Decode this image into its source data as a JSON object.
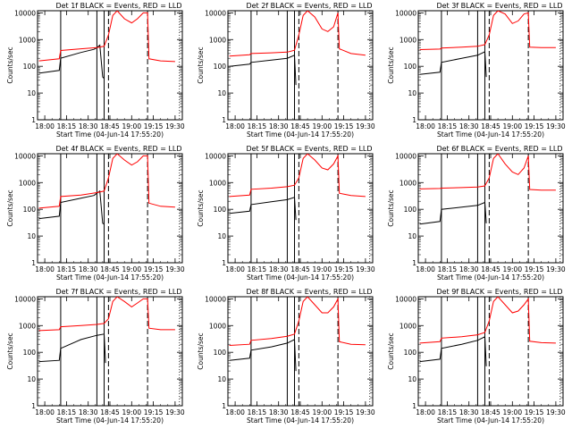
{
  "chart_data": [
    {
      "type": "line",
      "title": "Det 1f BLACK = Events, RED = LLD",
      "xlabel": "Start Time (04-Jun-14 17:55:20)",
      "ylabel": "Counts/sec",
      "xticks": [
        "18:00",
        "18:15",
        "18:30",
        "18:45",
        "19:00",
        "19:15",
        "19:30"
      ],
      "yticks": [
        "1",
        "10",
        "100",
        "1000",
        "10000"
      ],
      "yscale": "log",
      "ylim": [
        1,
        12000
      ],
      "xlim": [
        "17:55",
        "19:35"
      ],
      "series": [
        {
          "name": "Events",
          "color": "#000000",
          "x": [
            "17:56",
            "18:10",
            "18:11",
            "18:25",
            "18:34",
            "18:36",
            "18:38",
            "18:40",
            "18:41"
          ],
          "values": [
            55,
            70,
            200,
            330,
            430,
            500,
            620,
            40,
            35
          ]
        },
        {
          "name": "LLD",
          "color": "#ff0000",
          "x": [
            "17:56",
            "18:10",
            "18:11",
            "18:25",
            "18:36",
            "18:41",
            "18:44",
            "18:47",
            "18:50",
            "18:55",
            "19:00",
            "19:04",
            "19:08",
            "19:11",
            "19:12",
            "19:20",
            "19:30"
          ],
          "values": [
            160,
            190,
            390,
            450,
            500,
            560,
            1500,
            8000,
            12000,
            6000,
            4200,
            6000,
            10000,
            10000,
            190,
            160,
            150
          ]
        }
      ],
      "markers": {
        "solid": [
          "18:11",
          "18:36",
          "18:41"
        ],
        "dashed": [
          "18:44",
          "19:11"
        ],
        "dotted": [
          "19:33"
        ]
      }
    },
    {
      "type": "line",
      "title": "Det 2f BLACK = Events, RED = LLD",
      "xlabel": "Start Time (04-Jun-14 17:55:20)",
      "ylabel": "Counts/sec",
      "xticks": [
        "18:00",
        "18:15",
        "18:30",
        "18:45",
        "19:00",
        "19:15",
        "19:30"
      ],
      "yticks": [
        "1",
        "10",
        "100",
        "1000",
        "10000"
      ],
      "yscale": "log",
      "ylim": [
        1,
        12000
      ],
      "xlim": [
        "17:55",
        "19:35"
      ],
      "series": [
        {
          "name": "Events",
          "color": "#000000",
          "x": [
            "17:56",
            "18:10",
            "18:11",
            "18:25",
            "18:36",
            "18:41",
            "18:42"
          ],
          "values": [
            100,
            120,
            140,
            170,
            200,
            260,
            20
          ]
        },
        {
          "name": "LLD",
          "color": "#ff0000",
          "x": [
            "17:56",
            "18:10",
            "18:11",
            "18:25",
            "18:36",
            "18:41",
            "18:44",
            "18:47",
            "18:50",
            "18:55",
            "19:00",
            "19:04",
            "19:08",
            "19:11",
            "19:12",
            "19:20",
            "19:30"
          ],
          "values": [
            240,
            270,
            300,
            320,
            340,
            400,
            1500,
            8000,
            12000,
            7000,
            2500,
            2000,
            3000,
            10000,
            450,
            300,
            260
          ]
        }
      ],
      "markers": {
        "solid": [
          "18:11",
          "18:36",
          "18:41"
        ],
        "dashed": [
          "18:44",
          "19:11"
        ],
        "dotted": [
          "19:33"
        ]
      }
    },
    {
      "type": "line",
      "title": "Det 3f BLACK = Events, RED = LLD",
      "xlabel": "Start Time (04-Jun-14 17:55:20)",
      "ylabel": "Counts/sec",
      "xticks": [
        "18:00",
        "18:15",
        "18:30",
        "18:45",
        "19:00",
        "19:15",
        "19:30"
      ],
      "yticks": [
        "1",
        "10",
        "100",
        "1000",
        "10000"
      ],
      "yscale": "log",
      "ylim": [
        1,
        12000
      ],
      "xlim": [
        "17:55",
        "19:35"
      ],
      "series": [
        {
          "name": "Events",
          "color": "#000000",
          "x": [
            "17:56",
            "18:10",
            "18:11",
            "18:25",
            "18:36",
            "18:41",
            "18:42"
          ],
          "values": [
            50,
            60,
            140,
            200,
            260,
            350,
            40
          ]
        },
        {
          "name": "LLD",
          "color": "#ff0000",
          "x": [
            "17:56",
            "18:10",
            "18:11",
            "18:25",
            "18:36",
            "18:41",
            "18:44",
            "18:47",
            "18:50",
            "18:55",
            "19:00",
            "19:04",
            "19:08",
            "19:11",
            "19:12",
            "19:20",
            "19:30"
          ],
          "values": [
            420,
            440,
            480,
            520,
            560,
            650,
            1500,
            8000,
            12000,
            9000,
            4000,
            5000,
            9000,
            10000,
            520,
            500,
            500
          ]
        }
      ],
      "markers": {
        "solid": [
          "18:11",
          "18:36",
          "18:41"
        ],
        "dashed": [
          "18:44",
          "19:11"
        ],
        "dotted": [
          "19:33"
        ]
      }
    },
    {
      "type": "line",
      "title": "Det 4f BLACK = Events, RED = LLD",
      "xlabel": "Start Time (04-Jun-14 17:55:20)",
      "ylabel": "Counts/sec",
      "xticks": [
        "18:00",
        "18:15",
        "18:30",
        "18:45",
        "19:00",
        "19:15",
        "19:30"
      ],
      "yticks": [
        "1",
        "10",
        "100",
        "1000",
        "10000"
      ],
      "yscale": "log",
      "ylim": [
        1,
        12000
      ],
      "xlim": [
        "17:55",
        "19:35"
      ],
      "series": [
        {
          "name": "Events",
          "color": "#000000",
          "x": [
            "17:56",
            "18:10",
            "18:11",
            "18:25",
            "18:34",
            "18:36",
            "18:38",
            "18:40",
            "18:41"
          ],
          "values": [
            45,
            55,
            180,
            260,
            330,
            400,
            480,
            30,
            28
          ]
        },
        {
          "name": "LLD",
          "color": "#ff0000",
          "x": [
            "17:56",
            "18:10",
            "18:11",
            "18:25",
            "18:36",
            "18:41",
            "18:44",
            "18:47",
            "18:50",
            "18:55",
            "19:00",
            "19:04",
            "19:08",
            "19:11",
            "19:12",
            "19:20",
            "19:30"
          ],
          "values": [
            110,
            130,
            300,
            340,
            420,
            480,
            1500,
            8000,
            12000,
            7000,
            4500,
            6000,
            10000,
            10000,
            170,
            130,
            120
          ]
        }
      ],
      "markers": {
        "solid": [
          "18:11",
          "18:36",
          "18:41"
        ],
        "dashed": [
          "18:44",
          "19:11"
        ],
        "dotted": [
          "19:33"
        ]
      }
    },
    {
      "type": "line",
      "title": "Det 5f BLACK = Events, RED = LLD",
      "xlabel": "Start Time (04-Jun-14 17:55:20)",
      "ylabel": "Counts/sec",
      "xticks": [
        "18:00",
        "18:15",
        "18:30",
        "18:45",
        "19:00",
        "19:15",
        "19:30"
      ],
      "yticks": [
        "1",
        "10",
        "100",
        "1000",
        "10000"
      ],
      "yscale": "log",
      "ylim": [
        1,
        12000
      ],
      "xlim": [
        "17:55",
        "19:35"
      ],
      "series": [
        {
          "name": "Events",
          "color": "#000000",
          "x": [
            "17:56",
            "18:10",
            "18:11",
            "18:25",
            "18:36",
            "18:41",
            "18:42"
          ],
          "values": [
            70,
            85,
            150,
            190,
            230,
            280,
            40
          ]
        },
        {
          "name": "LLD",
          "color": "#ff0000",
          "x": [
            "17:56",
            "18:10",
            "18:11",
            "18:25",
            "18:36",
            "18:41",
            "18:44",
            "18:47",
            "18:50",
            "18:55",
            "19:00",
            "19:04",
            "19:08",
            "19:11",
            "19:12",
            "19:20",
            "19:30"
          ],
          "values": [
            300,
            340,
            560,
            620,
            700,
            800,
            1500,
            8000,
            12000,
            7000,
            3500,
            3000,
            5000,
            10000,
            400,
            330,
            300
          ]
        }
      ],
      "markers": {
        "solid": [
          "18:11",
          "18:36",
          "18:41"
        ],
        "dashed": [
          "18:44",
          "19:11"
        ],
        "dotted": [
          "19:33"
        ]
      }
    },
    {
      "type": "line",
      "title": "Det 6f BLACK = Events, RED = LLD",
      "xlabel": "Start Time (04-Jun-14 17:55:20)",
      "ylabel": "Counts/sec",
      "xticks": [
        "18:00",
        "18:15",
        "18:30",
        "18:45",
        "19:00",
        "19:15",
        "19:30"
      ],
      "yticks": [
        "1",
        "10",
        "100",
        "1000",
        "10000"
      ],
      "yscale": "log",
      "ylim": [
        1,
        12000
      ],
      "xlim": [
        "17:55",
        "19:35"
      ],
      "series": [
        {
          "name": "Events",
          "color": "#000000",
          "x": [
            "17:56",
            "18:10",
            "18:11",
            "18:25",
            "18:36",
            "18:41",
            "18:42"
          ],
          "values": [
            28,
            35,
            100,
            120,
            140,
            180,
            30
          ]
        },
        {
          "name": "LLD",
          "color": "#ff0000",
          "x": [
            "17:56",
            "18:10",
            "18:11",
            "18:25",
            "18:36",
            "18:41",
            "18:44",
            "18:47",
            "18:50",
            "18:55",
            "19:00",
            "19:04",
            "19:08",
            "19:11",
            "19:12",
            "19:20",
            "19:30"
          ],
          "values": [
            580,
            600,
            620,
            650,
            680,
            750,
            1500,
            8000,
            12000,
            5000,
            2500,
            2000,
            3500,
            10000,
            550,
            520,
            520
          ]
        }
      ],
      "markers": {
        "solid": [
          "18:11",
          "18:36",
          "18:41"
        ],
        "dashed": [
          "18:44",
          "19:11"
        ],
        "dotted": [
          "19:33"
        ]
      }
    },
    {
      "type": "line",
      "title": "Det 7f BLACK = Events, RED = LLD",
      "xlabel": "Start Time (04-Jun-14 17:55:20)",
      "ylabel": "Counts/sec",
      "xticks": [
        "18:00",
        "18:15",
        "18:30",
        "18:45",
        "19:00",
        "19:15",
        "19:30"
      ],
      "yticks": [
        "1",
        "10",
        "100",
        "1000",
        "10000"
      ],
      "yscale": "log",
      "ylim": [
        1,
        12000
      ],
      "xlim": [
        "17:55",
        "19:35"
      ],
      "series": [
        {
          "name": "Events",
          "color": "#000000",
          "x": [
            "17:56",
            "18:10",
            "18:11",
            "18:25",
            "18:36",
            "18:41",
            "18:42"
          ],
          "values": [
            45,
            50,
            140,
            300,
            430,
            480,
            40
          ]
        },
        {
          "name": "LLD",
          "color": "#ff0000",
          "x": [
            "17:56",
            "18:10",
            "18:11",
            "18:25",
            "18:36",
            "18:41",
            "18:44",
            "18:47",
            "18:50",
            "18:55",
            "19:00",
            "19:04",
            "19:08",
            "19:11",
            "19:12",
            "19:20",
            "19:30"
          ],
          "values": [
            650,
            700,
            900,
            1000,
            1100,
            1200,
            1800,
            8000,
            12000,
            8000,
            5000,
            7000,
            10000,
            10000,
            800,
            700,
            700
          ]
        }
      ],
      "markers": {
        "solid": [
          "18:11",
          "18:36",
          "18:41"
        ],
        "dashed": [
          "18:44",
          "19:11"
        ],
        "dotted": [
          "19:33"
        ]
      }
    },
    {
      "type": "line",
      "title": "Det 8f BLACK = Events, RED = LLD",
      "xlabel": "Start Time (04-Jun-14 17:55:20)",
      "ylabel": "Counts/sec",
      "xticks": [
        "18:00",
        "18:15",
        "18:30",
        "18:45",
        "19:00",
        "19:15",
        "19:30"
      ],
      "yticks": [
        "1",
        "10",
        "100",
        "1000",
        "10000"
      ],
      "yscale": "log",
      "ylim": [
        1,
        12000
      ],
      "xlim": [
        "17:55",
        "19:35"
      ],
      "series": [
        {
          "name": "Events",
          "color": "#000000",
          "x": [
            "17:56",
            "18:10",
            "18:11",
            "18:25",
            "18:36",
            "18:41",
            "18:42"
          ],
          "values": [
            50,
            60,
            120,
            160,
            220,
            300,
            20
          ]
        },
        {
          "name": "LLD",
          "color": "#ff0000",
          "x": [
            "17:56",
            "18:10",
            "18:11",
            "18:25",
            "18:36",
            "18:41",
            "18:44",
            "18:47",
            "18:50",
            "18:55",
            "19:00",
            "19:04",
            "19:08",
            "19:11",
            "19:12",
            "19:20",
            "19:30"
          ],
          "values": [
            180,
            200,
            280,
            330,
            400,
            480,
            1500,
            8000,
            12000,
            6000,
            3000,
            3000,
            5000,
            10000,
            250,
            200,
            190
          ]
        }
      ],
      "markers": {
        "solid": [
          "18:11",
          "18:36",
          "18:41"
        ],
        "dashed": [
          "18:44",
          "19:11"
        ],
        "dotted": [
          "19:33"
        ]
      }
    },
    {
      "type": "line",
      "title": "Det 9f BLACK = Events, RED = LLD",
      "xlabel": "Start Time (04-Jun-14 17:55:20)",
      "ylabel": "Counts/sec",
      "xticks": [
        "18:00",
        "18:15",
        "18:30",
        "18:45",
        "19:00",
        "19:15",
        "19:30"
      ],
      "yticks": [
        "1",
        "10",
        "100",
        "1000",
        "10000"
      ],
      "yscale": "log",
      "ylim": [
        1,
        12000
      ],
      "xlim": [
        "17:55",
        "19:35"
      ],
      "series": [
        {
          "name": "Events",
          "color": "#000000",
          "x": [
            "17:56",
            "18:10",
            "18:11",
            "18:25",
            "18:36",
            "18:41",
            "18:42"
          ],
          "values": [
            45,
            55,
            140,
            200,
            280,
            380,
            30
          ]
        },
        {
          "name": "LLD",
          "color": "#ff0000",
          "x": [
            "17:56",
            "18:10",
            "18:11",
            "18:25",
            "18:36",
            "18:41",
            "18:44",
            "18:47",
            "18:50",
            "18:55",
            "19:00",
            "19:04",
            "19:08",
            "19:11",
            "19:12",
            "19:20",
            "19:30"
          ],
          "values": [
            220,
            250,
            340,
            380,
            450,
            550,
            1500,
            8000,
            12000,
            6000,
            3000,
            3500,
            6000,
            10000,
            260,
            230,
            220
          ]
        }
      ],
      "markers": {
        "solid": [
          "18:11",
          "18:36",
          "18:41"
        ],
        "dashed": [
          "18:44",
          "19:11"
        ],
        "dotted": [
          "19:33"
        ]
      }
    }
  ]
}
